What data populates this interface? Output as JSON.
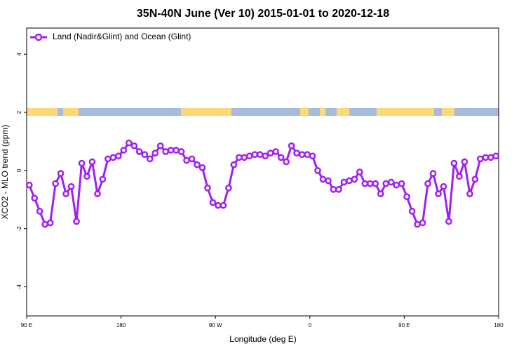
{
  "chart_data": {
    "type": "line",
    "title": "35N-40N June (Ver 10)   2015-01-01 to 2020-12-18",
    "xlabel": "Longitude (deg E)",
    "ylabel": "XCO2 - MLO trend (ppm)",
    "xlim": [
      90,
      540
    ],
    "ylim": [
      -5.0,
      4.9
    ],
    "xticks": [
      {
        "value": 90,
        "label": "90 E"
      },
      {
        "value": 180,
        "label": "180"
      },
      {
        "value": 270,
        "label": "90 W"
      },
      {
        "value": 360,
        "label": "0"
      },
      {
        "value": 450,
        "label": "90 E"
      },
      {
        "value": 540,
        "label": "180"
      }
    ],
    "yticks": [
      -4,
      -2,
      0,
      2,
      4
    ],
    "legend": "upper left",
    "x": [
      92.5,
      97.5,
      102.5,
      107.5,
      112.5,
      117.5,
      122.5,
      127.5,
      132.5,
      137.5,
      142.5,
      147.5,
      152.5,
      157.5,
      162.5,
      167.5,
      172.5,
      177.5,
      182.5,
      187.5,
      192.5,
      197.5,
      202.5,
      207.5,
      212.5,
      217.5,
      222.5,
      227.5,
      232.5,
      237.5,
      242.5,
      247.5,
      252.5,
      257.5,
      262.5,
      267.5,
      272.5,
      277.5,
      282.5,
      287.5,
      292.5,
      297.5,
      302.5,
      307.5,
      312.5,
      317.5,
      322.5,
      327.5,
      332.5,
      337.5,
      342.5,
      347.5,
      352.5,
      357.5,
      362.5,
      367.5,
      372.5,
      377.5,
      382.5,
      387.5,
      392.5,
      397.5,
      402.5,
      407.5,
      412.5,
      417.5,
      422.5,
      427.5,
      432.5,
      437.5,
      442.5,
      447.5,
      452.5,
      457.5,
      462.5,
      467.5,
      472.5,
      477.5,
      482.5,
      487.5,
      492.5,
      497.5,
      502.5,
      507.5,
      512.5,
      517.5,
      522.5,
      527.5,
      532.5,
      537.5
    ],
    "series": [
      {
        "name": "Land (Nadir&Glint) and Ocean (Glint)",
        "color": "#a020f0",
        "values": [
          -0.5,
          -0.95,
          -1.4,
          -1.85,
          -1.8,
          -0.45,
          -0.1,
          -0.8,
          -0.55,
          -1.75,
          0.25,
          -0.2,
          0.3,
          -0.8,
          -0.3,
          0.4,
          0.45,
          0.5,
          0.7,
          0.95,
          0.85,
          0.65,
          0.55,
          0.4,
          0.6,
          0.85,
          0.65,
          0.7,
          0.7,
          0.65,
          0.35,
          0.4,
          0.2,
          0.1,
          -0.6,
          -1.1,
          -1.2,
          -1.2,
          -0.6,
          0.2,
          0.45,
          0.45,
          0.5,
          0.55,
          0.55,
          0.5,
          0.6,
          0.65,
          0.45,
          0.3,
          0.85,
          0.6,
          0.55,
          0.55,
          0.5,
          0.0,
          -0.3,
          -0.35,
          -0.65,
          -0.65,
          -0.4,
          -0.35,
          -0.3,
          -0.05,
          -0.45,
          -0.45,
          -0.45,
          -0.8,
          -0.45,
          -0.4,
          -0.5,
          -0.45,
          -0.9,
          -1.4,
          -1.85,
          -1.8,
          -0.45,
          -0.1,
          -0.8,
          -0.55,
          -1.75,
          0.25,
          -0.2,
          0.3,
          -0.8,
          -0.3,
          0.4,
          0.45,
          0.45,
          0.5
        ]
      }
    ]
  }
}
